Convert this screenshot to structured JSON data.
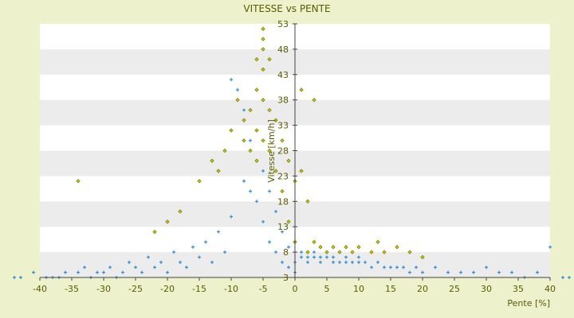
{
  "chart_data": {
    "type": "scatter",
    "title": "VITESSE vs PENTE",
    "xlabel": "Pente [%]",
    "ylabel": "Vitesse [km/h]",
    "xlim": [
      -40,
      40
    ],
    "ylim": [
      3,
      53
    ],
    "x_ticks": [
      -40,
      -35,
      -30,
      -25,
      -20,
      -15,
      -10,
      -5,
      0,
      5,
      10,
      15,
      20,
      25,
      30,
      35,
      40
    ],
    "y_ticks": [
      3,
      8,
      13,
      18,
      23,
      28,
      33,
      38,
      43,
      48,
      53
    ],
    "grid": "horizontal alternating bands",
    "legend": "none",
    "colors": {
      "background": "#eef2cc",
      "band_light": "#ffffff",
      "band_dark": "#ececec",
      "series_blue": "#2f8fd6",
      "series_yellow": "#c8c800",
      "series_yellow_edge": "#6b6b00",
      "axis": "#444444",
      "text": "#5a5a00"
    },
    "series": [
      {
        "color": "#2f8fd6",
        "marker": "plus",
        "points": [
          [
            -44,
            3
          ],
          [
            -43,
            3
          ],
          [
            -41,
            4
          ],
          [
            -39,
            3
          ],
          [
            -38,
            3
          ],
          [
            -37,
            3
          ],
          [
            -36,
            4
          ],
          [
            -34,
            4
          ],
          [
            -33,
            5
          ],
          [
            -32,
            3
          ],
          [
            -31,
            4
          ],
          [
            -30,
            4
          ],
          [
            -29,
            5
          ],
          [
            -28,
            3
          ],
          [
            -27,
            4
          ],
          [
            -26,
            6
          ],
          [
            -25,
            5
          ],
          [
            -24,
            4
          ],
          [
            -23,
            7
          ],
          [
            -22,
            5
          ],
          [
            -21,
            6
          ],
          [
            -20,
            4
          ],
          [
            -19,
            8
          ],
          [
            -18,
            6
          ],
          [
            -17,
            5
          ],
          [
            -16,
            9
          ],
          [
            -15,
            7
          ],
          [
            -14,
            10
          ],
          [
            -13,
            6
          ],
          [
            -12,
            12
          ],
          [
            -11,
            8
          ],
          [
            -10,
            15
          ],
          [
            -10,
            42
          ],
          [
            -9,
            40
          ],
          [
            -8,
            36
          ],
          [
            -8,
            22
          ],
          [
            -7,
            30
          ],
          [
            -7,
            20
          ],
          [
            -6,
            26
          ],
          [
            -6,
            18
          ],
          [
            -5,
            24
          ],
          [
            -5,
            14
          ],
          [
            -4,
            20
          ],
          [
            -4,
            10
          ],
          [
            -3,
            16
          ],
          [
            -3,
            8
          ],
          [
            -2,
            12
          ],
          [
            -2,
            6
          ],
          [
            -1,
            9
          ],
          [
            -1,
            5
          ],
          [
            0,
            4
          ],
          [
            0,
            6
          ],
          [
            1,
            7
          ],
          [
            1,
            8
          ],
          [
            2,
            7
          ],
          [
            2,
            6
          ],
          [
            3,
            8
          ],
          [
            3,
            7
          ],
          [
            4,
            7
          ],
          [
            4,
            6
          ],
          [
            5,
            8
          ],
          [
            5,
            7
          ],
          [
            6,
            7
          ],
          [
            6,
            6
          ],
          [
            7,
            8
          ],
          [
            7,
            6
          ],
          [
            8,
            7
          ],
          [
            8,
            6
          ],
          [
            9,
            6
          ],
          [
            10,
            7
          ],
          [
            10,
            6
          ],
          [
            11,
            6
          ],
          [
            12,
            5
          ],
          [
            13,
            6
          ],
          [
            14,
            5
          ],
          [
            15,
            5
          ],
          [
            16,
            5
          ],
          [
            17,
            5
          ],
          [
            18,
            4
          ],
          [
            19,
            5
          ],
          [
            20,
            4
          ],
          [
            22,
            5
          ],
          [
            24,
            4
          ],
          [
            26,
            4
          ],
          [
            28,
            4
          ],
          [
            30,
            5
          ],
          [
            32,
            4
          ],
          [
            34,
            4
          ],
          [
            36,
            3
          ],
          [
            38,
            4
          ],
          [
            40,
            9
          ],
          [
            42,
            3
          ],
          [
            43,
            3
          ]
        ]
      },
      {
        "color": "#c8c800",
        "marker": "diamond",
        "points": [
          [
            -34,
            22
          ],
          [
            -22,
            12
          ],
          [
            -20,
            14
          ],
          [
            -18,
            16
          ],
          [
            -15,
            22
          ],
          [
            -13,
            26
          ],
          [
            -12,
            24
          ],
          [
            -11,
            28
          ],
          [
            -10,
            32
          ],
          [
            -9,
            38
          ],
          [
            -8,
            34
          ],
          [
            -8,
            30
          ],
          [
            -7,
            36
          ],
          [
            -7,
            28
          ],
          [
            -6,
            46
          ],
          [
            -6,
            40
          ],
          [
            -6,
            32
          ],
          [
            -6,
            26
          ],
          [
            -5,
            52
          ],
          [
            -5,
            50
          ],
          [
            -5,
            48
          ],
          [
            -5,
            44
          ],
          [
            -5,
            38
          ],
          [
            -5,
            30
          ],
          [
            -4,
            46
          ],
          [
            -4,
            36
          ],
          [
            -4,
            28
          ],
          [
            -3,
            34
          ],
          [
            -3,
            24
          ],
          [
            -2,
            30
          ],
          [
            -2,
            20
          ],
          [
            -1,
            26
          ],
          [
            -1,
            14
          ],
          [
            0,
            22
          ],
          [
            0,
            10
          ],
          [
            1,
            40
          ],
          [
            1,
            24
          ],
          [
            2,
            18
          ],
          [
            2,
            8
          ],
          [
            3,
            38
          ],
          [
            3,
            10
          ],
          [
            4,
            9
          ],
          [
            5,
            8
          ],
          [
            6,
            9
          ],
          [
            7,
            8
          ],
          [
            8,
            9
          ],
          [
            9,
            8
          ],
          [
            10,
            9
          ],
          [
            12,
            8
          ],
          [
            13,
            10
          ],
          [
            14,
            8
          ],
          [
            16,
            9
          ],
          [
            18,
            8
          ],
          [
            20,
            7
          ]
        ]
      }
    ]
  }
}
